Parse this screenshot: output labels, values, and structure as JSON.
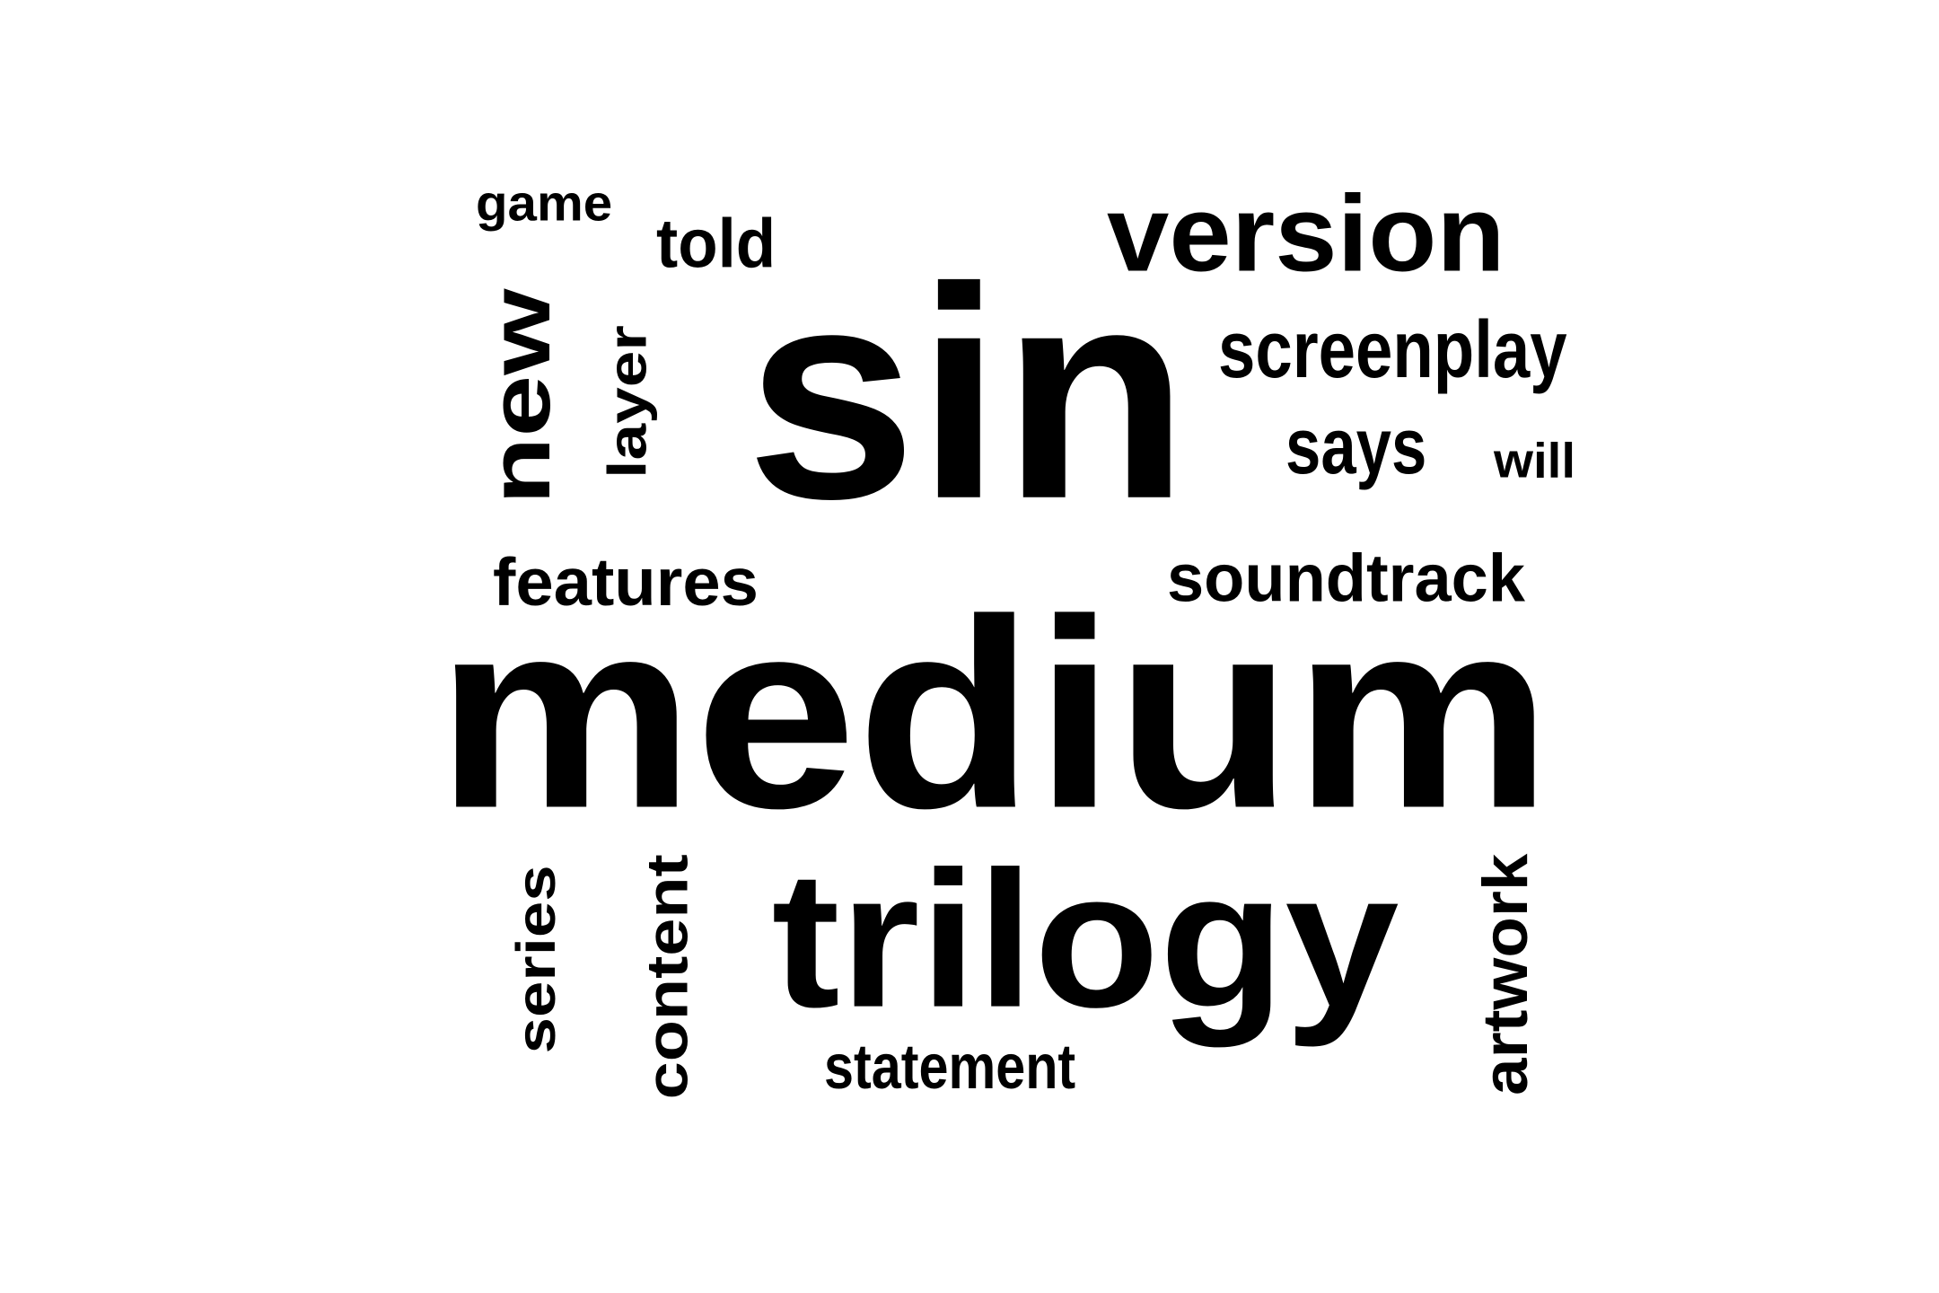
{
  "word_cloud": {
    "text_color": "#000000",
    "background_color": "#ffffff",
    "words": [
      {
        "id": "medium",
        "text": "medium",
        "orientation": "horizontal"
      },
      {
        "id": "sin",
        "text": "sin",
        "orientation": "horizontal"
      },
      {
        "id": "trilogy",
        "text": "trilogy",
        "orientation": "horizontal"
      },
      {
        "id": "version",
        "text": "version",
        "orientation": "horizontal"
      },
      {
        "id": "new",
        "text": "new",
        "orientation": "vertical"
      },
      {
        "id": "screenplay",
        "text": "screenplay",
        "orientation": "horizontal"
      },
      {
        "id": "soundtrack",
        "text": "soundtrack",
        "orientation": "horizontal"
      },
      {
        "id": "features",
        "text": "features",
        "orientation": "horizontal"
      },
      {
        "id": "content",
        "text": "content",
        "orientation": "vertical"
      },
      {
        "id": "artwork",
        "text": "artwork",
        "orientation": "vertical"
      },
      {
        "id": "series",
        "text": "series",
        "orientation": "vertical"
      },
      {
        "id": "says",
        "text": "says",
        "orientation": "horizontal"
      },
      {
        "id": "layer",
        "text": "layer",
        "orientation": "vertical"
      },
      {
        "id": "told",
        "text": "told",
        "orientation": "horizontal"
      },
      {
        "id": "statement",
        "text": "statement",
        "orientation": "horizontal"
      },
      {
        "id": "game",
        "text": "game",
        "orientation": "horizontal"
      },
      {
        "id": "will",
        "text": "will",
        "orientation": "horizontal"
      }
    ]
  }
}
